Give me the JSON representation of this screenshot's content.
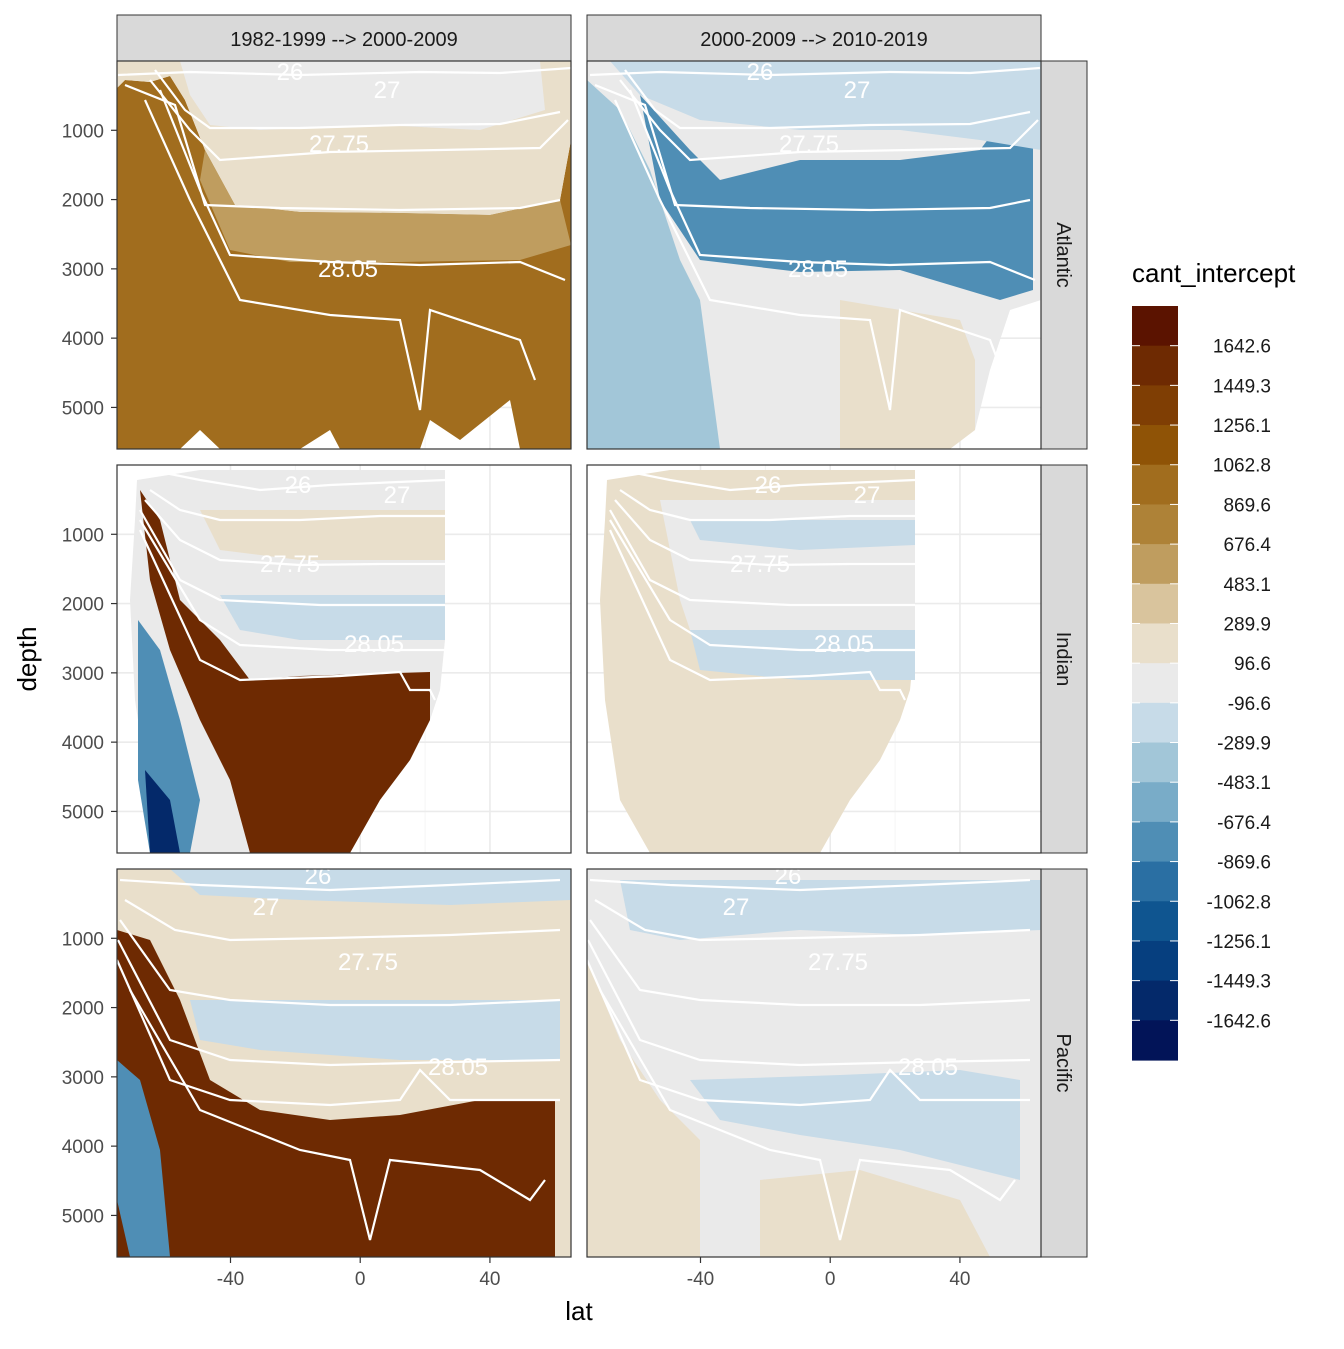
{
  "chart_data": {
    "type": "heatmap",
    "title": "",
    "xlabel": "lat",
    "ylabel": "depth",
    "x_ticks": [
      -40,
      0,
      40
    ],
    "y_ticks": [
      1000,
      2000,
      3000,
      4000,
      5000
    ],
    "xlim": [
      -75,
      65
    ],
    "ylim": [
      5600,
      0
    ],
    "grid": true,
    "legend_placement": "right",
    "columns": [
      "1982-1999 --> 2000-2009",
      "2000-2009 --> 2010-2019"
    ],
    "rows": [
      "Atlantic",
      "Indian",
      "Pacific"
    ],
    "contour_labels": [
      "26",
      "27",
      "27.75",
      "28.05"
    ],
    "legend": {
      "title": "cant_intercept",
      "labels": [
        "1642.6",
        "1449.3",
        "1256.1",
        "1062.8",
        "869.6",
        "676.4",
        "483.1",
        "289.9",
        "96.6",
        "-96.6",
        "-289.9",
        "-483.1",
        "-676.4",
        "-869.6",
        "-1062.8",
        "-1256.1",
        "-1449.3",
        "-1642.6"
      ],
      "colors": [
        "#5b1300",
        "#6e2a02",
        "#7f3e04",
        "#8f5306",
        "#a16d1e",
        "#ae8237",
        "#bf9d5f",
        "#d9c49d",
        "#e9dfcb",
        "#eaeaea",
        "#c7dbe8",
        "#a2c6d8",
        "#79acc8",
        "#4f8eb5",
        "#2a6fa3",
        "#0f5590",
        "#063f7f",
        "#04296a",
        "#021458"
      ]
    },
    "panels": [
      {
        "row": "Atlantic",
        "column": "1982-1999 --> 2000-2009",
        "dominant_value": 1160,
        "lat_range": [
          -75,
          63
        ],
        "max_depth": 5600
      },
      {
        "row": "Atlantic",
        "column": "2000-2009 --> 2010-2019",
        "dominant_value": -770,
        "lat_range": [
          -75,
          63
        ],
        "max_depth": 5600
      },
      {
        "row": "Indian",
        "column": "1982-1999 --> 2000-2009",
        "dominant_value": 1550,
        "lat_range": [
          -75,
          25
        ],
        "max_depth": 5600
      },
      {
        "row": "Indian",
        "column": "2000-2009 --> 2010-2019",
        "dominant_value": 190,
        "lat_range": [
          -75,
          25
        ],
        "max_depth": 5600
      },
      {
        "row": "Pacific",
        "column": "1982-1999 --> 2000-2009",
        "dominant_value": 1550,
        "lat_range": [
          -75,
          60
        ],
        "max_depth": 5600
      },
      {
        "row": "Pacific",
        "column": "2000-2009 --> 2010-2019",
        "dominant_value": -190,
        "lat_range": [
          -75,
          60
        ],
        "max_depth": 5600
      }
    ]
  }
}
